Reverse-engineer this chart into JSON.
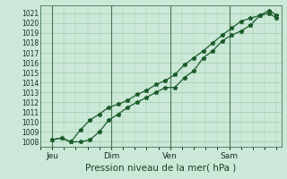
{
  "title": "Pression niveau de la mer( hPa )",
  "bg_color": "#cce8d8",
  "grid_color": "#99ccaa",
  "line_color": "#1a5c2a",
  "ylim": [
    1007.5,
    1021.8
  ],
  "yticks": [
    1008,
    1009,
    1010,
    1011,
    1012,
    1013,
    1014,
    1015,
    1016,
    1017,
    1018,
    1019,
    1020,
    1021
  ],
  "xtick_labels": [
    "Jeu",
    "Dim",
    "Ven",
    "Sam"
  ],
  "xtick_positions": [
    0.5,
    3.0,
    5.5,
    8.0
  ],
  "xlim": [
    0,
    10.2
  ],
  "series1_x": [
    0.5,
    0.9,
    1.3,
    1.7,
    2.1,
    2.5,
    2.9,
    3.3,
    3.7,
    4.1,
    4.5,
    4.9,
    5.3,
    5.7,
    6.1,
    6.5,
    6.9,
    7.3,
    7.7,
    8.1,
    8.5,
    8.9,
    9.3,
    9.7,
    10.0
  ],
  "series1_y": [
    1008.2,
    1008.4,
    1008.0,
    1008.0,
    1008.2,
    1009.0,
    1010.2,
    1010.8,
    1011.5,
    1012.0,
    1012.5,
    1013.0,
    1013.5,
    1013.5,
    1014.5,
    1015.2,
    1016.5,
    1017.2,
    1018.2,
    1018.8,
    1019.2,
    1019.8,
    1020.8,
    1021.3,
    1020.8
  ],
  "series2_x": [
    0.5,
    0.9,
    1.3,
    1.7,
    2.1,
    2.5,
    2.9,
    3.3,
    3.7,
    4.1,
    4.5,
    4.9,
    5.3,
    5.7,
    6.1,
    6.5,
    6.9,
    7.3,
    7.7,
    8.1,
    8.5,
    8.9,
    9.3,
    9.7,
    10.0
  ],
  "series2_y": [
    1008.2,
    1008.4,
    1008.0,
    1009.2,
    1010.2,
    1010.8,
    1011.5,
    1011.8,
    1012.2,
    1012.8,
    1013.2,
    1013.8,
    1014.2,
    1014.8,
    1015.8,
    1016.5,
    1017.2,
    1018.0,
    1018.8,
    1019.5,
    1020.2,
    1020.5,
    1020.8,
    1021.0,
    1020.5
  ]
}
